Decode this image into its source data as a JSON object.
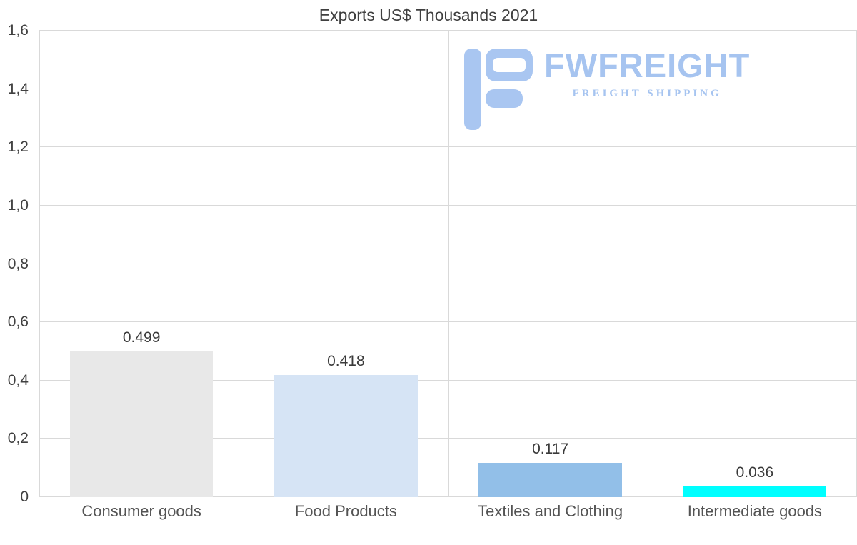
{
  "chart_data": {
    "type": "bar",
    "title": "Exports US$ Thousands 2021",
    "categories": [
      "Consumer goods",
      "Food Products",
      "Textiles and Clothing",
      "Intermediate goods"
    ],
    "values": [
      0.499,
      0.418,
      0.117,
      0.036
    ],
    "value_labels": [
      "0.499",
      "0.418",
      "0.117",
      "0.036"
    ],
    "bar_colors": [
      "#e8e8e8",
      "#d6e4f5",
      "#92bfe8",
      "#00ffff"
    ],
    "ylim": [
      0,
      1.6
    ],
    "ytick_values": [
      0,
      0.2,
      0.4,
      0.6,
      0.8,
      1.0,
      1.2,
      1.4,
      1.6
    ],
    "ytick_labels": [
      "0",
      "0,2",
      "0,4",
      "0,6",
      "0,8",
      "1,0",
      "1,2",
      "1,4",
      "1,6"
    ],
    "grid": true,
    "legend": "none",
    "xlabel": "",
    "ylabel": ""
  },
  "logo": {
    "title": "FWFREIGHT",
    "subtitle": "FREIGHT SHIPPING",
    "color": "#a6c4f0"
  },
  "colors": {
    "gridline": "#d9d9d9",
    "axis_text": "#404040",
    "title_text": "#3f3f3f"
  }
}
